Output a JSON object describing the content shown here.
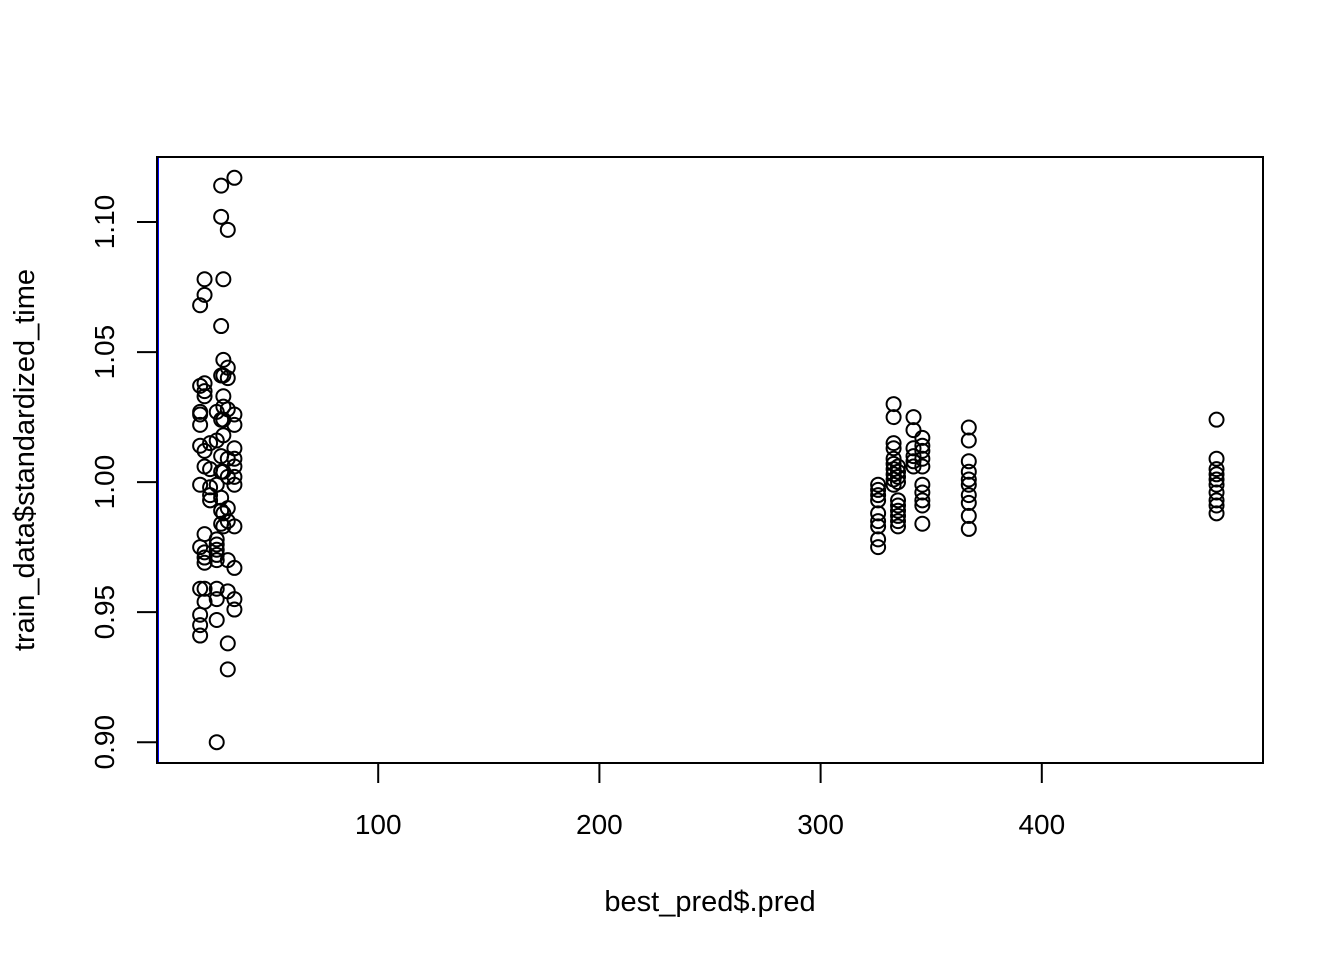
{
  "chart_data": {
    "type": "scatter",
    "xlabel": "best_pred$.pred",
    "ylabel": "train_data$standardized_time",
    "xlim": [
      0,
      500
    ],
    "ylim": [
      0.892,
      1.125
    ],
    "x_ticks": [
      100,
      200,
      300,
      400
    ],
    "x_tick_labels": [
      "100",
      "200",
      "300",
      "400"
    ],
    "y_ticks": [
      0.9,
      0.95,
      1.0,
      1.05,
      1.1
    ],
    "y_tick_labels": [
      "0.90",
      "0.95",
      "1.00",
      "1.05",
      "1.10"
    ],
    "grid": false,
    "point_style": "open-circle",
    "point_color": "#000000",
    "reference_line": {
      "orientation": "vertical",
      "x": 0,
      "color": "#0000ff"
    },
    "series": [
      {
        "points": [
          [
            19.5,
            1.068
          ],
          [
            19.5,
            1.037
          ],
          [
            19.5,
            1.027
          ],
          [
            19.5,
            1.026
          ],
          [
            19.5,
            1.022
          ],
          [
            19.5,
            1.014
          ],
          [
            19.5,
            0.999
          ],
          [
            19.5,
            0.975
          ],
          [
            19.5,
            0.959
          ],
          [
            19.5,
            0.949
          ],
          [
            19.5,
            0.945
          ],
          [
            19.5,
            0.941
          ],
          [
            21.5,
            1.078
          ],
          [
            21.5,
            1.072
          ],
          [
            21.5,
            1.038
          ],
          [
            21.5,
            1.035
          ],
          [
            21.5,
            1.033
          ],
          [
            21.5,
            1.012
          ],
          [
            21.5,
            1.006
          ],
          [
            21.5,
            0.98
          ],
          [
            21.5,
            0.973
          ],
          [
            21.5,
            0.971
          ],
          [
            21.5,
            0.969
          ],
          [
            21.5,
            0.959
          ],
          [
            21.5,
            0.954
          ],
          [
            24,
            1.015
          ],
          [
            24,
            1.005
          ],
          [
            24,
            0.998
          ],
          [
            24,
            0.995
          ],
          [
            24,
            0.993
          ],
          [
            27,
            1.027
          ],
          [
            27,
            1.016
          ],
          [
            27,
            0.999
          ],
          [
            27,
            0.978
          ],
          [
            27,
            0.976
          ],
          [
            27,
            0.974
          ],
          [
            27,
            0.972
          ],
          [
            27,
            0.97
          ],
          [
            27,
            0.959
          ],
          [
            27,
            0.955
          ],
          [
            27,
            0.947
          ],
          [
            27,
            0.9
          ],
          [
            29,
            1.114
          ],
          [
            29,
            1.102
          ],
          [
            29,
            1.06
          ],
          [
            29,
            1.041
          ],
          [
            29,
            1.024
          ],
          [
            29,
            1.01
          ],
          [
            29,
            1.004
          ],
          [
            29,
            0.994
          ],
          [
            29,
            0.989
          ],
          [
            29,
            0.984
          ],
          [
            30,
            1.078
          ],
          [
            30,
            1.047
          ],
          [
            30,
            1.041
          ],
          [
            30,
            1.033
          ],
          [
            30,
            1.029
          ],
          [
            30,
            1.024
          ],
          [
            30,
            1.018
          ],
          [
            30,
            1.004
          ],
          [
            30,
            0.988
          ],
          [
            30,
            0.983
          ],
          [
            32,
            1.097
          ],
          [
            32,
            1.044
          ],
          [
            32,
            1.04
          ],
          [
            32,
            1.028
          ],
          [
            32,
            1.009
          ],
          [
            32,
            1.002
          ],
          [
            32,
            0.99
          ],
          [
            32,
            0.985
          ],
          [
            32,
            0.97
          ],
          [
            32,
            0.958
          ],
          [
            32,
            0.938
          ],
          [
            32,
            0.928
          ],
          [
            35,
            1.117
          ],
          [
            35,
            1.026
          ],
          [
            35,
            1.022
          ],
          [
            35,
            1.013
          ],
          [
            35,
            1.009
          ],
          [
            35,
            1.006
          ],
          [
            35,
            1.002
          ],
          [
            35,
            0.999
          ],
          [
            35,
            0.983
          ],
          [
            35,
            0.967
          ],
          [
            35,
            0.955
          ],
          [
            35,
            0.951
          ],
          [
            326,
            0.999
          ],
          [
            326,
            0.997
          ],
          [
            326,
            0.995
          ],
          [
            326,
            0.993
          ],
          [
            326,
            0.988
          ],
          [
            326,
            0.985
          ],
          [
            326,
            0.983
          ],
          [
            326,
            0.978
          ],
          [
            326,
            0.975
          ],
          [
            333,
            1.03
          ],
          [
            333,
            1.025
          ],
          [
            333,
            1.015
          ],
          [
            333,
            1.013
          ],
          [
            333,
            1.009
          ],
          [
            333,
            1.007
          ],
          [
            333,
            1.005
          ],
          [
            333,
            1.003
          ],
          [
            333,
            1.001
          ],
          [
            333,
            0.999
          ],
          [
            335,
            1.006
          ],
          [
            335,
            1.004
          ],
          [
            335,
            1.002
          ],
          [
            335,
            1.0
          ],
          [
            335,
            0.993
          ],
          [
            335,
            0.991
          ],
          [
            335,
            0.989
          ],
          [
            335,
            0.987
          ],
          [
            335,
            0.985
          ],
          [
            335,
            0.983
          ],
          [
            342,
            1.025
          ],
          [
            342,
            1.02
          ],
          [
            342,
            1.013
          ],
          [
            342,
            1.01
          ],
          [
            342,
            1.008
          ],
          [
            342,
            1.006
          ],
          [
            346,
            1.017
          ],
          [
            346,
            1.014
          ],
          [
            346,
            1.012
          ],
          [
            346,
            1.009
          ],
          [
            346,
            1.006
          ],
          [
            346,
            0.999
          ],
          [
            346,
            0.996
          ],
          [
            346,
            0.993
          ],
          [
            346,
            0.991
          ],
          [
            346,
            0.984
          ],
          [
            367,
            1.021
          ],
          [
            367,
            1.016
          ],
          [
            367,
            1.008
          ],
          [
            367,
            1.004
          ],
          [
            367,
            1.001
          ],
          [
            367,
            0.999
          ],
          [
            367,
            0.995
          ],
          [
            367,
            0.992
          ],
          [
            367,
            0.987
          ],
          [
            367,
            0.982
          ],
          [
            479,
            1.024
          ],
          [
            479,
            1.009
          ],
          [
            479,
            1.005
          ],
          [
            479,
            1.003
          ],
          [
            479,
            1.001
          ],
          [
            479,
            0.999
          ],
          [
            479,
            0.996
          ],
          [
            479,
            0.993
          ],
          [
            479,
            0.991
          ],
          [
            479,
            0.988
          ]
        ]
      }
    ]
  }
}
